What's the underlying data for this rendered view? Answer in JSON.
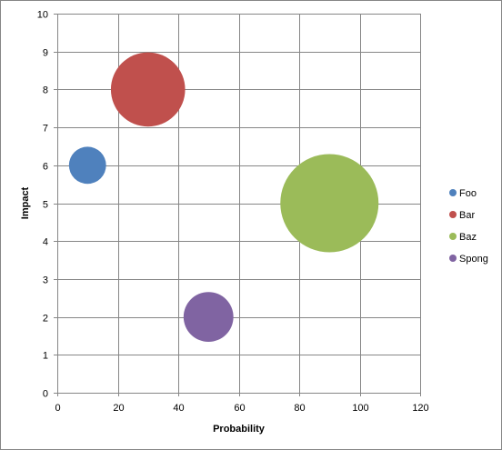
{
  "chart_data": {
    "type": "scatter",
    "subtype": "bubble",
    "xlabel": "Probability",
    "ylabel": "Impact",
    "xlim": [
      0,
      120
    ],
    "ylim": [
      0,
      10
    ],
    "x_ticks": [
      0,
      20,
      40,
      60,
      80,
      100,
      120
    ],
    "y_ticks": [
      0,
      1,
      2,
      3,
      4,
      5,
      6,
      7,
      8,
      9,
      10
    ],
    "grid": true,
    "legend_position": "right",
    "series": [
      {
        "name": "Foo",
        "x": 10,
        "y": 6,
        "size": 1,
        "color": "#4f81bd"
      },
      {
        "name": "Bar",
        "x": 30,
        "y": 8,
        "size": 4,
        "color": "#c0504d"
      },
      {
        "name": "Baz",
        "x": 90,
        "y": 5,
        "size": 7,
        "color": "#9bbb59"
      },
      {
        "name": "Spong",
        "x": 50,
        "y": 2,
        "size": 1.8,
        "color": "#8064a2"
      }
    ]
  }
}
